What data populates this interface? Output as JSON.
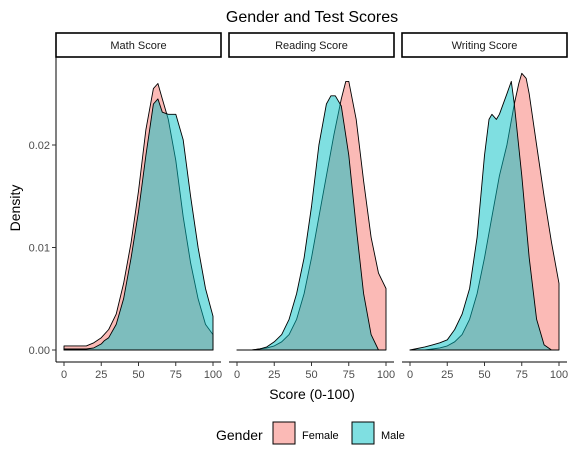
{
  "chart_data": {
    "type": "area",
    "title": "Gender and Test Scores",
    "xlabel": "Score (0-100)",
    "ylabel": "Density",
    "xlim": [
      0,
      100
    ],
    "ylim": [
      0,
      0.0275
    ],
    "x_ticks": [
      0,
      25,
      50,
      75,
      100
    ],
    "x_tick_labels": [
      "0",
      "25",
      "50",
      "75",
      "100"
    ],
    "y_ticks": [
      0,
      0.01,
      0.02
    ],
    "y_tick_labels": [
      "0.00",
      "0.01",
      "0.02"
    ],
    "grid": false,
    "legend": {
      "title": "Gender",
      "position": "bottom",
      "entries": [
        {
          "label": "Female",
          "color": "#F8766D"
        },
        {
          "label": "Male",
          "color": "#00BFC4"
        }
      ]
    },
    "panels": [
      {
        "label": "Math Score",
        "series": [
          {
            "name": "Female",
            "color": "#F8766D",
            "x": [
              0,
              10,
              15,
              20,
              25,
              30,
              35,
              40,
              45,
              50,
              55,
              60,
              63,
              66,
              70,
              75,
              80,
              85,
              90,
              95,
              100
            ],
            "y": [
              0.0004,
              0.0004,
              0.0004,
              0.0007,
              0.0012,
              0.002,
              0.0035,
              0.0065,
              0.0105,
              0.0155,
              0.0215,
              0.0255,
              0.026,
              0.0245,
              0.0225,
              0.0185,
              0.013,
              0.0085,
              0.005,
              0.0025,
              0.0015
            ]
          },
          {
            "name": "Male",
            "color": "#00BFC4",
            "x": [
              0,
              15,
              20,
              25,
              27,
              30,
              35,
              40,
              45,
              50,
              55,
              60,
              63,
              66,
              70,
              75,
              80,
              85,
              90,
              95,
              100
            ],
            "y": [
              0.0001,
              0.0001,
              0.0002,
              0.0006,
              0.0009,
              0.0012,
              0.0025,
              0.005,
              0.009,
              0.0135,
              0.019,
              0.024,
              0.0245,
              0.0232,
              0.023,
              0.023,
              0.0205,
              0.015,
              0.01,
              0.006,
              0.0033
            ]
          }
        ]
      },
      {
        "label": "Reading Score",
        "series": [
          {
            "name": "Female",
            "color": "#F8766D",
            "x": [
              0,
              10,
              15,
              20,
              25,
              30,
              35,
              40,
              45,
              50,
              55,
              60,
              65,
              70,
              73,
              75,
              80,
              85,
              90,
              95,
              100
            ],
            "y": [
              0,
              0,
              0.0001,
              0.0002,
              0.0004,
              0.0008,
              0.0015,
              0.003,
              0.0055,
              0.009,
              0.013,
              0.017,
              0.021,
              0.0245,
              0.0262,
              0.0262,
              0.0225,
              0.0165,
              0.011,
              0.0075,
              0.006
            ]
          },
          {
            "name": "Male",
            "color": "#00BFC4",
            "x": [
              0,
              10,
              15,
              20,
              25,
              30,
              35,
              40,
              45,
              50,
              55,
              60,
              63,
              66,
              70,
              75,
              80,
              85,
              90,
              95
            ],
            "y": [
              0,
              0,
              0.0001,
              0.0003,
              0.0008,
              0.0015,
              0.003,
              0.0055,
              0.009,
              0.014,
              0.02,
              0.024,
              0.0248,
              0.0248,
              0.0238,
              0.019,
              0.012,
              0.0055,
              0.0015,
              0
            ]
          }
        ]
      },
      {
        "label": "Writing Score",
        "series": [
          {
            "name": "Female",
            "color": "#F8766D",
            "x": [
              0,
              10,
              15,
              20,
              25,
              30,
              35,
              40,
              45,
              50,
              55,
              60,
              65,
              70,
              73,
              75,
              78,
              80,
              85,
              90,
              95,
              100
            ],
            "y": [
              0,
              0,
              0.0001,
              0.0002,
              0.0004,
              0.0008,
              0.0015,
              0.003,
              0.0055,
              0.009,
              0.013,
              0.017,
              0.02,
              0.024,
              0.026,
              0.027,
              0.0265,
              0.025,
              0.02,
              0.015,
              0.0105,
              0.0065
            ]
          },
          {
            "name": "Male",
            "color": "#00BFC4",
            "x": [
              0,
              10,
              15,
              20,
              25,
              30,
              35,
              40,
              45,
              50,
              53,
              55,
              58,
              60,
              65,
              68,
              70,
              75,
              80,
              85,
              90,
              95
            ],
            "y": [
              0,
              0.0003,
              0.0005,
              0.0007,
              0.001,
              0.002,
              0.0035,
              0.006,
              0.011,
              0.019,
              0.0225,
              0.023,
              0.0225,
              0.023,
              0.025,
              0.0262,
              0.024,
              0.017,
              0.009,
              0.003,
              0.0005,
              0
            ]
          }
        ]
      }
    ]
  }
}
